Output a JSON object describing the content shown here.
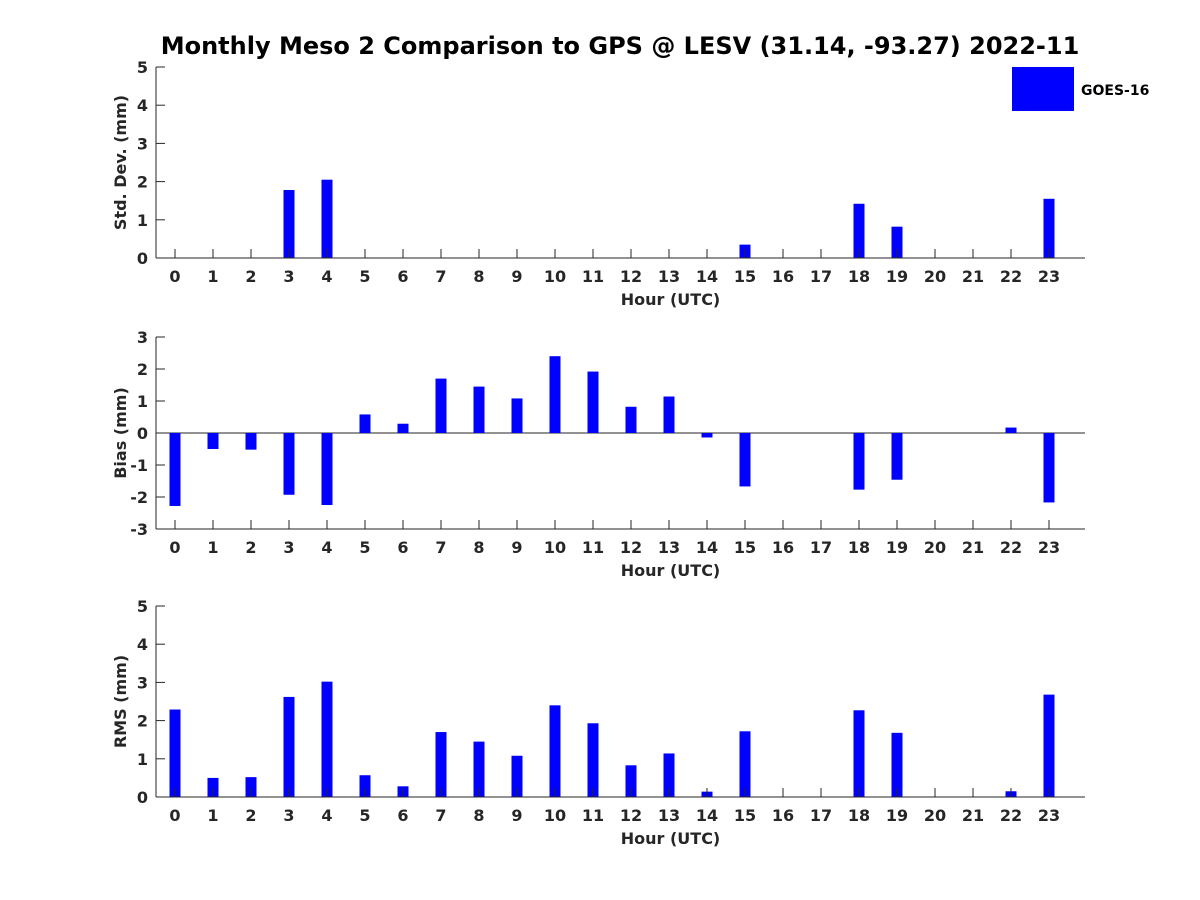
{
  "title": "Monthly Meso 2 Comparison to GPS @ LESV (31.14, -93.27) 2022-11",
  "colors": {
    "bar": "#0000ff",
    "axis": "#262626"
  },
  "legend": {
    "label": "GOES-16",
    "placement": "top-right"
  },
  "chart_data": [
    {
      "type": "bar",
      "ylabel": "Std. Dev. (mm)",
      "xlabel": "Hour (UTC)",
      "categories": [
        "0",
        "1",
        "2",
        "3",
        "4",
        "5",
        "6",
        "7",
        "8",
        "9",
        "10",
        "11",
        "12",
        "13",
        "14",
        "15",
        "16",
        "17",
        "18",
        "19",
        "20",
        "21",
        "22",
        "23"
      ],
      "series": [
        {
          "name": "GOES-16",
          "values": [
            0,
            0,
            0,
            1.78,
            2.05,
            0,
            0,
            0,
            0,
            0,
            0,
            0,
            0,
            0,
            0,
            0.35,
            0,
            0,
            1.42,
            0.82,
            0,
            0,
            0,
            1.55
          ]
        }
      ],
      "ylim": [
        0,
        5
      ],
      "yticks": [
        "0",
        "1",
        "2",
        "3",
        "4",
        "5"
      ]
    },
    {
      "type": "bar",
      "ylabel": "Bias (mm)",
      "xlabel": "Hour (UTC)",
      "categories": [
        "0",
        "1",
        "2",
        "3",
        "4",
        "5",
        "6",
        "7",
        "8",
        "9",
        "10",
        "11",
        "12",
        "13",
        "14",
        "15",
        "16",
        "17",
        "18",
        "19",
        "20",
        "21",
        "22",
        "23"
      ],
      "series": [
        {
          "name": "GOES-16",
          "values": [
            -2.28,
            -0.5,
            -0.52,
            -1.93,
            -2.25,
            0.58,
            0.29,
            1.7,
            1.45,
            1.08,
            2.4,
            1.92,
            0.82,
            1.14,
            -0.14,
            -1.67,
            0,
            0,
            -1.77,
            -1.46,
            0,
            0,
            0.17,
            -2.17
          ]
        }
      ],
      "ylim": [
        -3,
        3
      ],
      "yticks": [
        "-3",
        "-2",
        "-1",
        "0",
        "1",
        "2",
        "3"
      ]
    },
    {
      "type": "bar",
      "ylabel": "RMS (mm)",
      "xlabel": "Hour (UTC)",
      "categories": [
        "0",
        "1",
        "2",
        "3",
        "4",
        "5",
        "6",
        "7",
        "8",
        "9",
        "10",
        "11",
        "12",
        "13",
        "14",
        "15",
        "16",
        "17",
        "18",
        "19",
        "20",
        "21",
        "22",
        "23"
      ],
      "series": [
        {
          "name": "GOES-16",
          "values": [
            2.29,
            0.5,
            0.52,
            2.62,
            3.02,
            0.57,
            0.28,
            1.7,
            1.45,
            1.08,
            2.4,
            1.93,
            0.83,
            1.14,
            0.14,
            1.72,
            0,
            0,
            2.27,
            1.68,
            0,
            0,
            0.15,
            2.68
          ]
        }
      ],
      "ylim": [
        0,
        5
      ],
      "yticks": [
        "0",
        "1",
        "2",
        "3",
        "4",
        "5"
      ]
    }
  ]
}
